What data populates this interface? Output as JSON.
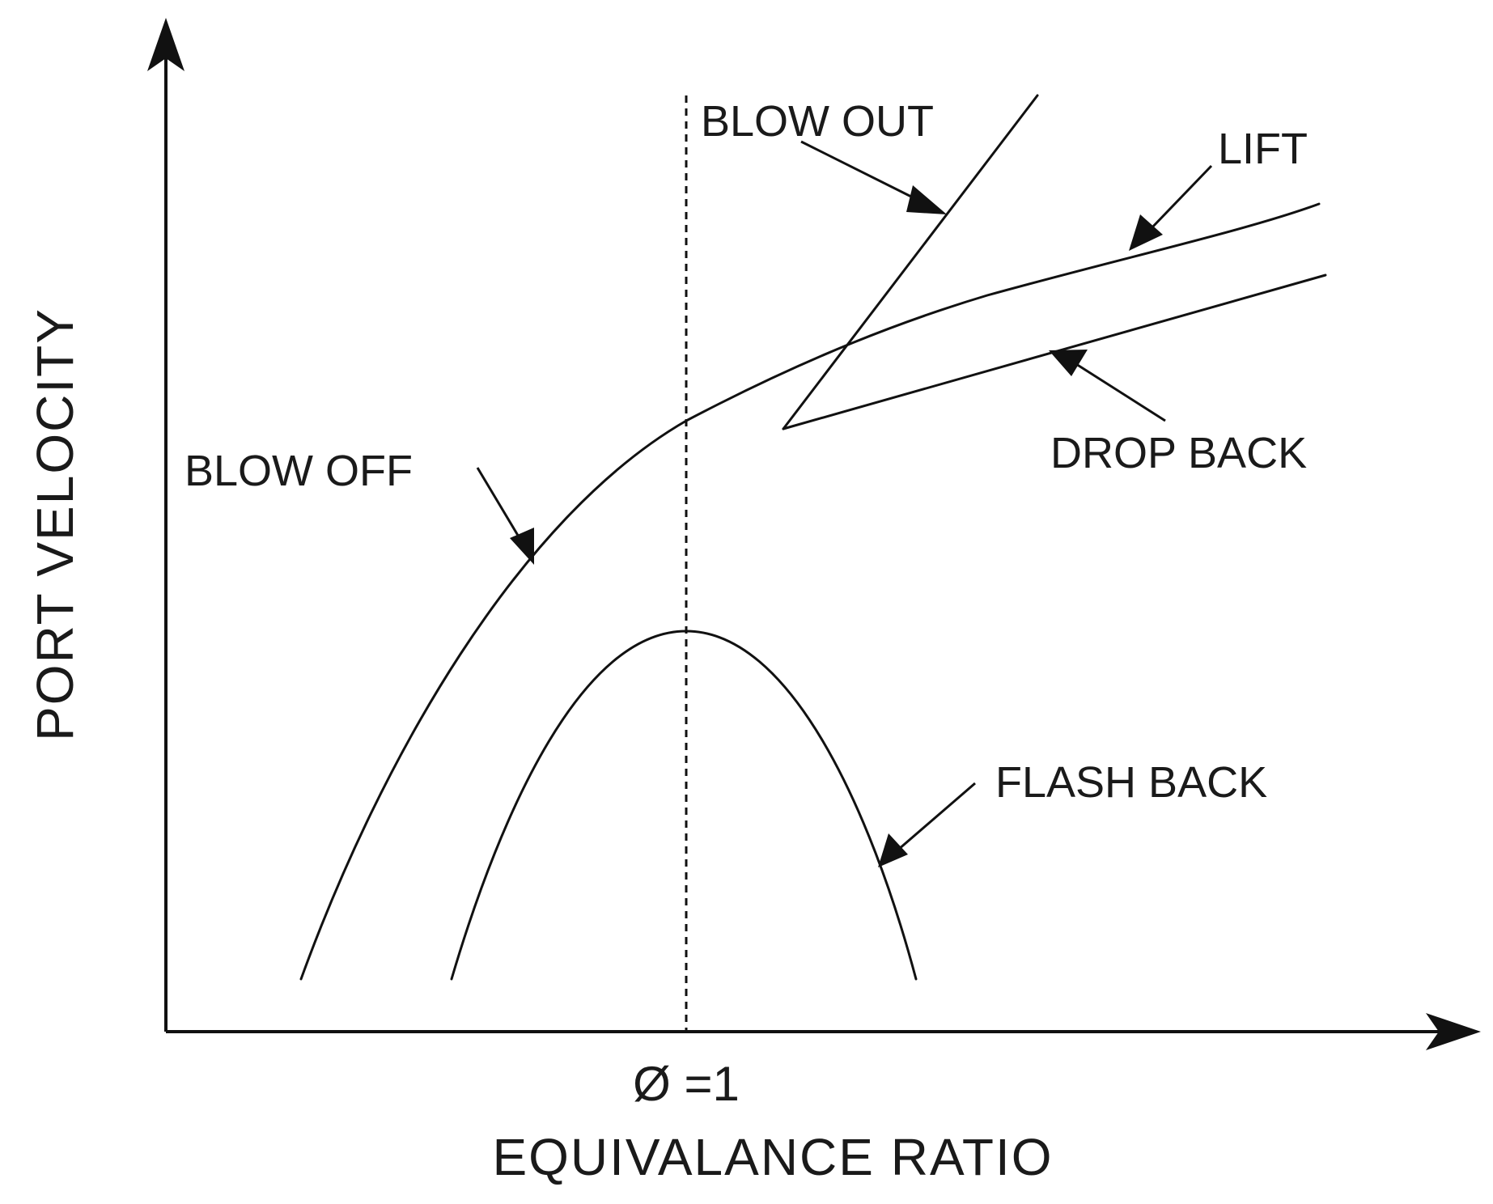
{
  "axes": {
    "x_label": "EQUIVALANCE RATIO",
    "y_label": "PORT VELOCITY",
    "x_tick": "Ø =1"
  },
  "curves": {
    "blow_out": "BLOW OUT",
    "lift": "LIFT",
    "drop_back": "DROP BACK",
    "blow_off": "BLOW OFF",
    "flash_back": "FLASH BACK"
  },
  "colors": {
    "line": "#111111",
    "text": "#1a1a1a",
    "background": "#ffffff"
  }
}
